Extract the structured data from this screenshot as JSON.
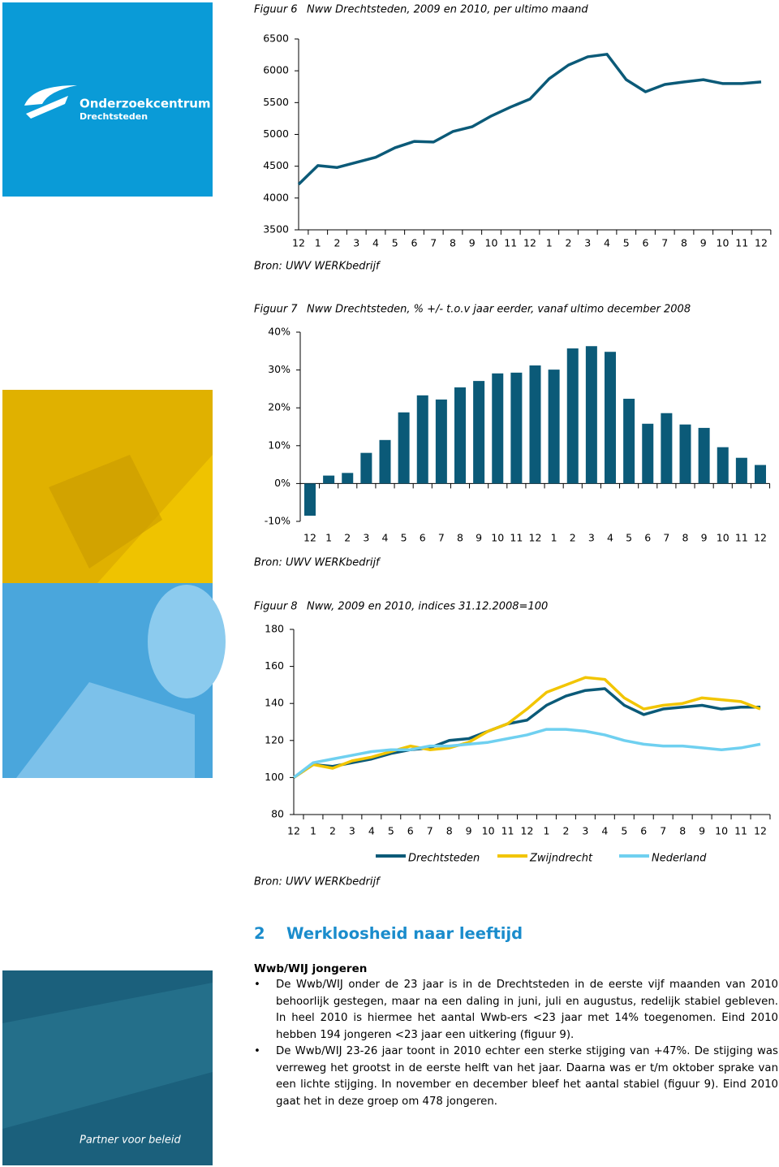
{
  "logo": {
    "name": "Onderzoekcentrum",
    "place": "Drechtsteden"
  },
  "chart_data": [
    {
      "type": "line",
      "figure": "Figuur 6",
      "title": "Nww Drechtsteden, 2009 en 2010, per ultimo maand",
      "categories": [
        "12",
        "1",
        "2",
        "3",
        "4",
        "5",
        "6",
        "7",
        "8",
        "9",
        "10",
        "11",
        "12",
        "1",
        "2",
        "3",
        "4",
        "5",
        "6",
        "7",
        "8",
        "9",
        "10",
        "11",
        "12"
      ],
      "series": [
        {
          "name": "Drechtsteden",
          "color": "#0b5a78",
          "values": [
            4215,
            4510,
            4480,
            4560,
            4640,
            4790,
            4890,
            4880,
            5045,
            5120,
            5290,
            5430,
            5555,
            5875,
            6090,
            6220,
            6260,
            5860,
            5670,
            5785,
            5825,
            5860,
            5800,
            5800,
            5825
          ]
        }
      ],
      "ylim": [
        3500,
        6500
      ],
      "yticks": [
        3500,
        4000,
        4500,
        5000,
        5500,
        6000,
        6500
      ],
      "source": "Bron: UWV WERKbedrijf"
    },
    {
      "type": "bar",
      "figure": "Figuur 7",
      "title": "Nww Drechtsteden, % +/- t.o.v jaar eerder, vanaf ultimo december 2008",
      "categories": [
        "12",
        "1",
        "2",
        "3",
        "4",
        "5",
        "6",
        "7",
        "8",
        "9",
        "10",
        "11",
        "12",
        "1",
        "2",
        "3",
        "4",
        "5",
        "6",
        "7",
        "8",
        "9",
        "10",
        "11",
        "12"
      ],
      "series": [
        {
          "name": "Drechtsteden",
          "color": "#0b5a78",
          "values": [
            -8.5,
            2.1,
            2.8,
            8.1,
            11.5,
            18.8,
            23.3,
            22.2,
            25.4,
            27.1,
            29.1,
            29.3,
            31.2,
            30.1,
            35.7,
            36.3,
            34.8,
            22.4,
            15.8,
            18.6,
            15.6,
            14.7,
            9.6,
            6.8,
            4.9
          ]
        }
      ],
      "ylim": [
        -10,
        40
      ],
      "yticks": [
        {
          "value": -10,
          "label": "-10%"
        },
        {
          "value": 0,
          "label": "0%"
        },
        {
          "value": 10,
          "label": "10%"
        },
        {
          "value": 20,
          "label": "20%"
        },
        {
          "value": 30,
          "label": "30%"
        },
        {
          "value": 40,
          "label": "40%"
        }
      ],
      "source": "Bron: UWV WERKbedrijf"
    },
    {
      "type": "line",
      "figure": "Figuur 8",
      "title": "Nww, 2009 en 2010, indices 31.12.2008=100",
      "categories": [
        "12",
        "1",
        "2",
        "3",
        "4",
        "5",
        "6",
        "7",
        "8",
        "9",
        "10",
        "11",
        "12",
        "1",
        "2",
        "3",
        "4",
        "5",
        "6",
        "7",
        "8",
        "9",
        "10",
        "11",
        "12"
      ],
      "series": [
        {
          "name": "Drechtsteden",
          "color": "#0b5a78",
          "values": [
            100,
            107,
            106,
            108,
            110,
            113,
            115,
            116,
            120,
            121,
            125,
            129,
            131,
            139,
            144,
            147,
            148,
            139,
            134,
            137,
            138,
            139,
            137,
            138,
            138
          ]
        },
        {
          "name": "Zwijndrecht",
          "color": "#f2c500",
          "values": [
            100,
            107,
            105,
            109,
            111,
            114,
            117,
            115,
            116,
            119,
            125,
            129,
            137,
            146,
            150,
            154,
            153,
            143,
            137,
            139,
            140,
            143,
            142,
            141,
            137
          ]
        },
        {
          "name": "Nederland",
          "color": "#6fd0f0",
          "values": [
            100,
            108,
            110,
            112,
            114,
            115,
            115,
            117,
            117,
            118,
            119,
            121,
            123,
            126,
            126,
            125,
            123,
            120,
            118,
            117,
            117,
            116,
            115,
            116,
            118
          ]
        }
      ],
      "ylim": [
        80,
        180
      ],
      "yticks": [
        80,
        100,
        120,
        140,
        160,
        180
      ],
      "legend": "bottom",
      "source": "Bron: UWV WERKbedrijf"
    }
  ],
  "section": {
    "number": "2",
    "title": "Werkloosheid naar leeftijd",
    "subtitle": "Wwb/WIJ jongeren",
    "bullets": [
      "De Wwb/WIJ onder de 23 jaar is in de Drechtsteden in de eerste vijf maanden van 2010 behoorlijk gestegen, maar na een daling in juni, juli en augustus, redelijk stabiel gebleven. In heel 2010 is hiermee het aantal Wwb-ers <23 jaar met 14% toegenomen. Eind 2010 hebben 194 jongeren <23 jaar een uitkering (figuur 9).",
      "De Wwb/WIJ 23-26 jaar toont in 2010 echter een sterke stijging van +47%. De stijging was verreweg het grootst in de eerste helft van het jaar. Daarna was er t/m oktober sprake van een lichte stijging. In november en december bleef het aantal stabiel (figuur 9). Eind 2010 gaat het in deze groep om 478 jongeren."
    ]
  },
  "footer": {
    "tagline": "Partner voor beleid"
  }
}
